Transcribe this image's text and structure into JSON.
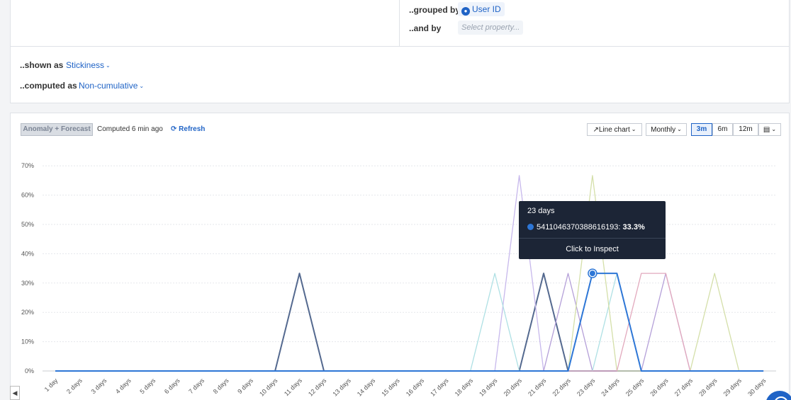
{
  "query": {
    "grouped_by_label": "..grouped by",
    "grouped_by_value": "User ID",
    "and_by_label": "..and by",
    "and_by_placeholder": "Select property...",
    "shown_as_label": "..shown as",
    "shown_as_value": "Stickiness",
    "computed_as_label": "..computed as",
    "computed_as_value": "Non-cumulative"
  },
  "toolbar": {
    "anomaly_label": "Anomaly + Forecast",
    "computed_text": "Computed 6 min ago",
    "refresh_label": "Refresh",
    "chart_type_label": "Line chart",
    "interval_label": "Monthly",
    "range_3m": "3m",
    "range_6m": "6m",
    "range_12m": "12m",
    "active_range": "3m"
  },
  "tooltip": {
    "title": "23 days",
    "series_id": "5411046370388616193",
    "value": "33.3%",
    "action": "Click to Inspect"
  },
  "chart_data": {
    "type": "line",
    "x": [
      "1 day",
      "2 days",
      "3 days",
      "4 days",
      "5 days",
      "6 days",
      "7 days",
      "8 days",
      "9 days",
      "10 days",
      "11 days",
      "12 days",
      "13 days",
      "14 days",
      "15 days",
      "16 days",
      "17 days",
      "18 days",
      "19 days",
      "20 days",
      "21 days",
      "22 days",
      "23 days",
      "24 days",
      "25 days",
      "26 days",
      "27 days",
      "28 days",
      "29 days",
      "30 days"
    ],
    "y_ticks": [
      "0%",
      "10%",
      "20%",
      "30%",
      "40%",
      "50%",
      "60%",
      "70%"
    ],
    "ylim": [
      0,
      70
    ],
    "grid": true,
    "highlight": {
      "series_index": 0,
      "x_index": 22
    },
    "series": [
      {
        "color": "#2d76d6",
        "width": 2,
        "values": [
          0,
          0,
          0,
          0,
          0,
          0,
          0,
          0,
          0,
          0,
          0,
          0,
          0,
          0,
          0,
          0,
          0,
          0,
          0,
          0,
          0,
          0,
          33.3,
          33.3,
          0,
          0,
          0,
          0,
          0,
          0
        ]
      },
      {
        "color": "#54698f",
        "width": 2,
        "values": [
          0,
          0,
          0,
          0,
          0,
          0,
          0,
          0,
          0,
          0,
          33.3,
          0,
          0,
          0,
          0,
          0,
          0,
          0,
          0,
          0,
          33.3,
          0,
          0,
          0,
          0,
          0,
          0,
          0,
          0,
          0
        ]
      },
      {
        "color": "#c7b8ec",
        "width": 1.3,
        "values": [
          0,
          0,
          0,
          0,
          0,
          0,
          0,
          0,
          0,
          0,
          0,
          0,
          0,
          0,
          0,
          0,
          0,
          0,
          0,
          66.7,
          0,
          0,
          0,
          0,
          0,
          0,
          0,
          0,
          0,
          0
        ]
      },
      {
        "color": "#b49fd8",
        "width": 1.3,
        "values": [
          0,
          0,
          0,
          0,
          0,
          0,
          0,
          0,
          0,
          0,
          0,
          0,
          0,
          0,
          0,
          0,
          0,
          0,
          0,
          0,
          0,
          33.3,
          0,
          0,
          0,
          33.3,
          0,
          0,
          0,
          0
        ]
      },
      {
        "color": "#aee0e4",
        "width": 1.3,
        "values": [
          0,
          0,
          0,
          0,
          0,
          0,
          0,
          0,
          0,
          0,
          0,
          0,
          0,
          0,
          0,
          0,
          0,
          0,
          33.3,
          0,
          0,
          0,
          0,
          33.3,
          0,
          0,
          0,
          0,
          0,
          0
        ]
      },
      {
        "color": "#d4dfa9",
        "width": 1.3,
        "values": [
          0,
          0,
          0,
          0,
          0,
          0,
          0,
          0,
          0,
          0,
          0,
          0,
          0,
          0,
          0,
          0,
          0,
          0,
          0,
          0,
          0,
          0,
          66.7,
          0,
          0,
          0,
          0,
          33.3,
          0,
          0
        ]
      },
      {
        "color": "#e2a9bd",
        "width": 1.3,
        "values": [
          0,
          0,
          0,
          0,
          0,
          0,
          0,
          0,
          0,
          0,
          0,
          0,
          0,
          0,
          0,
          0,
          0,
          0,
          0,
          0,
          0,
          0,
          0,
          0,
          33.3,
          33.3,
          0,
          0,
          0,
          0
        ]
      }
    ]
  }
}
